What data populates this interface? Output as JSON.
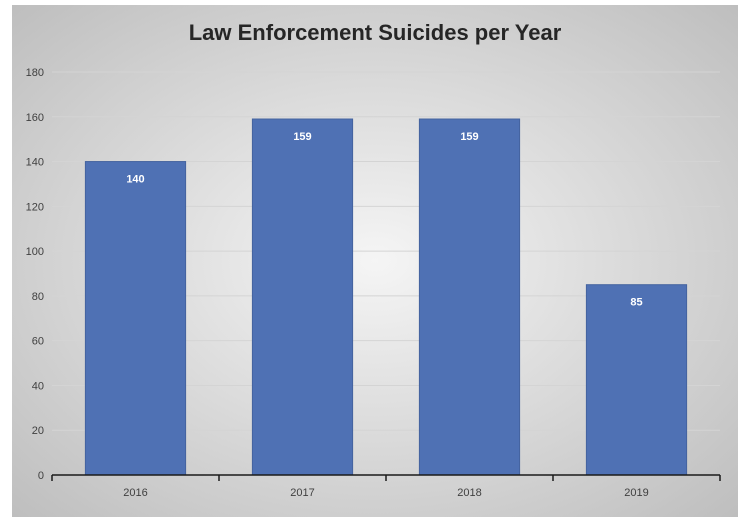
{
  "chart_data": {
    "type": "bar",
    "title": "Law Enforcement Suicides per Year",
    "xlabel": "",
    "ylabel": "",
    "categories": [
      "2016",
      "2017",
      "2018",
      "2019"
    ],
    "values": [
      140,
      159,
      159,
      85
    ],
    "data_labels": [
      "140",
      "159",
      "159",
      "85"
    ],
    "ylim": [
      0,
      180
    ],
    "yticks": [
      0,
      20,
      40,
      60,
      80,
      100,
      120,
      140,
      160,
      180
    ],
    "ytick_labels": [
      "0",
      "20",
      "40",
      "60",
      "80",
      "100",
      "120",
      "140",
      "160",
      "180"
    ],
    "grid": true,
    "legend": "none",
    "colors": {
      "bar": "#4f71b4",
      "bar_stroke": "#44639f",
      "grid": "#d4d4d4",
      "axis": "#1a1a1a",
      "background_center": "#f5f5f5",
      "background_edge": "#bdbdbd"
    }
  }
}
